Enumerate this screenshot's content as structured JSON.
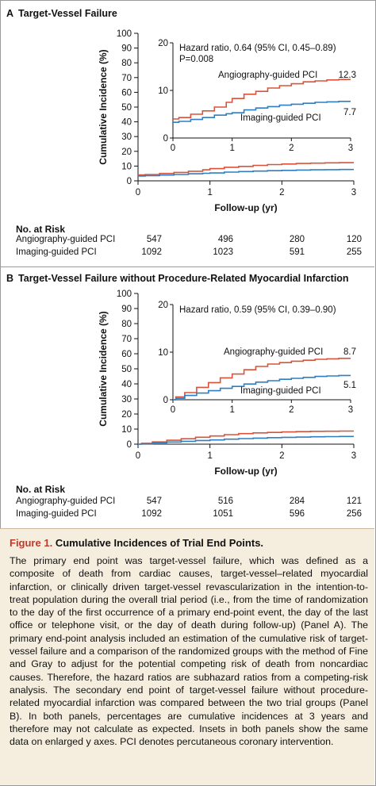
{
  "caption": {
    "figure_label": "Figure 1.",
    "title": "Cumulative Incidences of Trial End Points.",
    "body": "The primary end point was target-vessel failure, which was defined as a composite of death from cardiac causes, target-vessel–related myocardial infarction, or clinically driven target-vessel revascularization in the intention-to-treat population during the overall trial period (i.e., from the time of randomization to the day of the first occurrence of a primary end-point event, the day of the last office or telephone visit, or the day of death during follow-up) (Panel A). The primary end-point analysis included an estimation of the cumulative risk of target-vessel failure and a comparison of the randomized groups with the method of Fine and Gray to adjust for the potential competing risk of death from noncardiac causes. Therefore, the hazard ratios are subhazard ratios from a competing-risk analysis. The secondary end point of target-vessel failure without procedure-related myocardial infarction was compared between the two trial groups (Panel B). In both panels, percentages are cumulative incidences at 3 years and therefore may not calculate as expected. Insets in both panels show the same data on enlarged y axes. PCI denotes percutaneous coronary intervention."
  },
  "colors": {
    "angio": "#d9533a",
    "imaging": "#2f7fc0"
  },
  "chart_data": [
    {
      "type": "line",
      "panel_letter": "A",
      "title": "Target-Vessel Failure",
      "xlabel": "Follow-up (yr)",
      "ylabel": "Cumulative Incidence (%)",
      "xlim": [
        0,
        3
      ],
      "ylim": [
        0,
        100
      ],
      "x_ticks": [
        0,
        1,
        2,
        3
      ],
      "y_ticks": [
        0,
        10,
        20,
        30,
        40,
        50,
        60,
        70,
        80,
        90,
        100
      ],
      "inset": {
        "ylim": [
          0,
          20
        ],
        "y_ticks": [
          0,
          10,
          20
        ],
        "x_ticks": [
          0,
          1,
          2,
          3
        ]
      },
      "annotation": [
        "Hazard ratio, 0.64 (95% CI, 0.45–0.89)",
        "P=0.008"
      ],
      "series": [
        {
          "name": "Angiography-guided PCI",
          "color_key": "angio",
          "end_label": "12.3",
          "x": [
            0,
            0.1,
            0.3,
            0.5,
            0.7,
            0.9,
            1.0,
            1.2,
            1.4,
            1.6,
            1.8,
            2.0,
            2.2,
            2.4,
            2.6,
            2.8,
            3.0
          ],
          "y": [
            4.0,
            4.3,
            5.0,
            5.7,
            6.5,
            7.5,
            8.3,
            9.2,
            9.8,
            10.5,
            11.0,
            11.4,
            11.8,
            12.0,
            12.2,
            12.3,
            12.3
          ]
        },
        {
          "name": "Imaging-guided PCI",
          "color_key": "imaging",
          "end_label": "7.7",
          "x": [
            0,
            0.1,
            0.3,
            0.5,
            0.7,
            0.9,
            1.0,
            1.2,
            1.4,
            1.6,
            1.8,
            2.0,
            2.2,
            2.4,
            2.6,
            2.8,
            3.0
          ],
          "y": [
            3.3,
            3.5,
            3.9,
            4.3,
            4.8,
            5.1,
            5.3,
            5.9,
            6.3,
            6.6,
            6.9,
            7.1,
            7.3,
            7.5,
            7.6,
            7.7,
            7.7
          ]
        }
      ],
      "at_risk": {
        "heading": "No. at Risk",
        "rows": [
          {
            "label": "Angiography-guided PCI",
            "values": [
              "547",
              "496",
              "280",
              "120"
            ]
          },
          {
            "label": "Imaging-guided PCI",
            "values": [
              "1092",
              "1023",
              "591",
              "255"
            ]
          }
        ]
      }
    },
    {
      "type": "line",
      "panel_letter": "B",
      "title": "Target-Vessel Failure without Procedure-Related Myocardial Infarction",
      "xlabel": "Follow-up (yr)",
      "ylabel": "Cumulative Incidence (%)",
      "xlim": [
        0,
        3
      ],
      "ylim": [
        0,
        100
      ],
      "x_ticks": [
        0,
        1,
        2,
        3
      ],
      "y_ticks": [
        0,
        10,
        20,
        30,
        40,
        50,
        60,
        70,
        80,
        90,
        100
      ],
      "inset": {
        "ylim": [
          0,
          20
        ],
        "y_ticks": [
          0,
          10,
          20
        ],
        "x_ticks": [
          0,
          1,
          2,
          3
        ]
      },
      "annotation": [
        "Hazard ratio, 0.59 (95% CI, 0.39–0.90)"
      ],
      "series": [
        {
          "name": "Angiography-guided PCI",
          "color_key": "angio",
          "end_label": "8.7",
          "x": [
            0,
            0.05,
            0.2,
            0.4,
            0.6,
            0.8,
            1.0,
            1.2,
            1.4,
            1.6,
            1.8,
            2.0,
            2.2,
            2.4,
            2.6,
            2.8,
            3.0
          ],
          "y": [
            0,
            0.6,
            1.5,
            2.6,
            3.6,
            4.6,
            5.4,
            6.3,
            7.0,
            7.5,
            7.8,
            8.1,
            8.3,
            8.5,
            8.6,
            8.7,
            8.7
          ]
        },
        {
          "name": "Imaging-guided PCI",
          "color_key": "imaging",
          "end_label": "5.1",
          "x": [
            0,
            0.05,
            0.2,
            0.4,
            0.6,
            0.8,
            1.0,
            1.2,
            1.4,
            1.6,
            1.8,
            2.0,
            2.2,
            2.4,
            2.6,
            2.8,
            3.0
          ],
          "y": [
            0,
            0.3,
            0.9,
            1.4,
            1.9,
            2.4,
            2.8,
            3.3,
            3.7,
            4.0,
            4.3,
            4.5,
            4.7,
            4.9,
            5.0,
            5.1,
            5.1
          ]
        }
      ],
      "at_risk": {
        "heading": "No. at Risk",
        "rows": [
          {
            "label": "Angiography-guided PCI",
            "values": [
              "547",
              "516",
              "284",
              "121"
            ]
          },
          {
            "label": "Imaging-guided PCI",
            "values": [
              "1092",
              "1051",
              "596",
              "256"
            ]
          }
        ]
      }
    }
  ]
}
